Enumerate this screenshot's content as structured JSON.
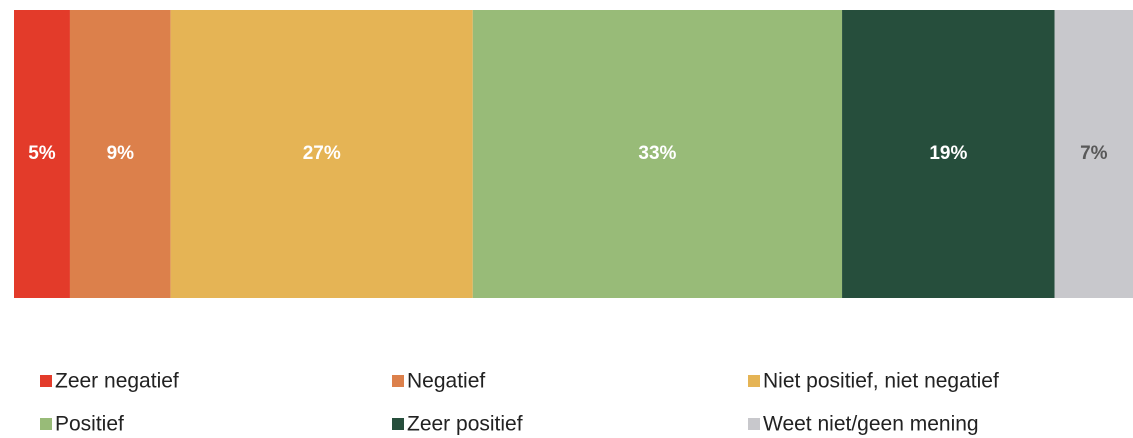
{
  "chart_data": {
    "type": "stacked_bar",
    "orientation": "horizontal",
    "series": [
      {
        "name": "Zeer negatief",
        "color": "#e33b2a",
        "label_color": "#ffffff",
        "values": [
          5
        ],
        "value_labels": [
          "5%"
        ]
      },
      {
        "name": "Negatief",
        "color": "#dc804b",
        "label_color": "#ffffff",
        "values": [
          9
        ],
        "value_labels": [
          "9%"
        ]
      },
      {
        "name": "Niet positief, niet negatief",
        "color": "#e5b455",
        "label_color": "#ffffff",
        "values": [
          27
        ],
        "value_labels": [
          "27%"
        ]
      },
      {
        "name": "Positief",
        "color": "#98bb78",
        "label_color": "#ffffff",
        "values": [
          33
        ],
        "value_labels": [
          "33%"
        ]
      },
      {
        "name": "Zeer positief",
        "color": "#264e3c",
        "label_color": "#ffffff",
        "values": [
          19
        ],
        "value_labels": [
          "19%"
        ]
      },
      {
        "name": "Weet niet/geen mening",
        "color": "#c8c8cc",
        "label_color": "#595959",
        "values": [
          7
        ],
        "value_labels": [
          "7%"
        ]
      }
    ],
    "legend": "bottom"
  }
}
